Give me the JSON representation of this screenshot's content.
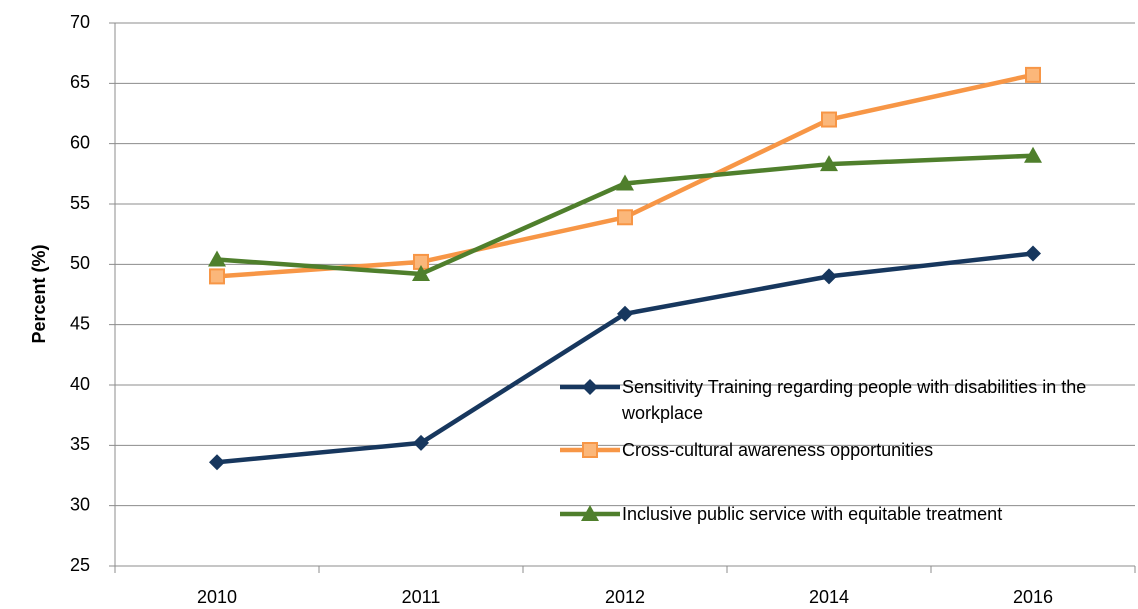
{
  "chart_data": {
    "type": "line",
    "y_label": "Percent (%)",
    "categories": [
      "2010",
      "2011",
      "2012",
      "2014",
      "2016"
    ],
    "series": [
      {
        "name": "Sensitivity Training regarding people with disabilities in the workplace",
        "color": "#17375e",
        "marker": "diamond",
        "values": [
          33.6,
          35.2,
          45.9,
          49.0,
          50.9
        ]
      },
      {
        "name": "Cross-cultural awareness opportunities",
        "color": "#f79646",
        "marker": "square",
        "values": [
          49.0,
          50.2,
          53.9,
          62.0,
          65.7
        ]
      },
      {
        "name": "Inclusive public service with equitable treatment",
        "color": "#4f7f2c",
        "marker": "triangle",
        "values": [
          50.4,
          49.2,
          56.7,
          58.3,
          59.0
        ]
      }
    ],
    "ylim": [
      25,
      70
    ],
    "yticks": [
      25,
      30,
      35,
      40,
      45,
      50,
      55,
      60,
      65,
      70
    ],
    "grid": true
  }
}
